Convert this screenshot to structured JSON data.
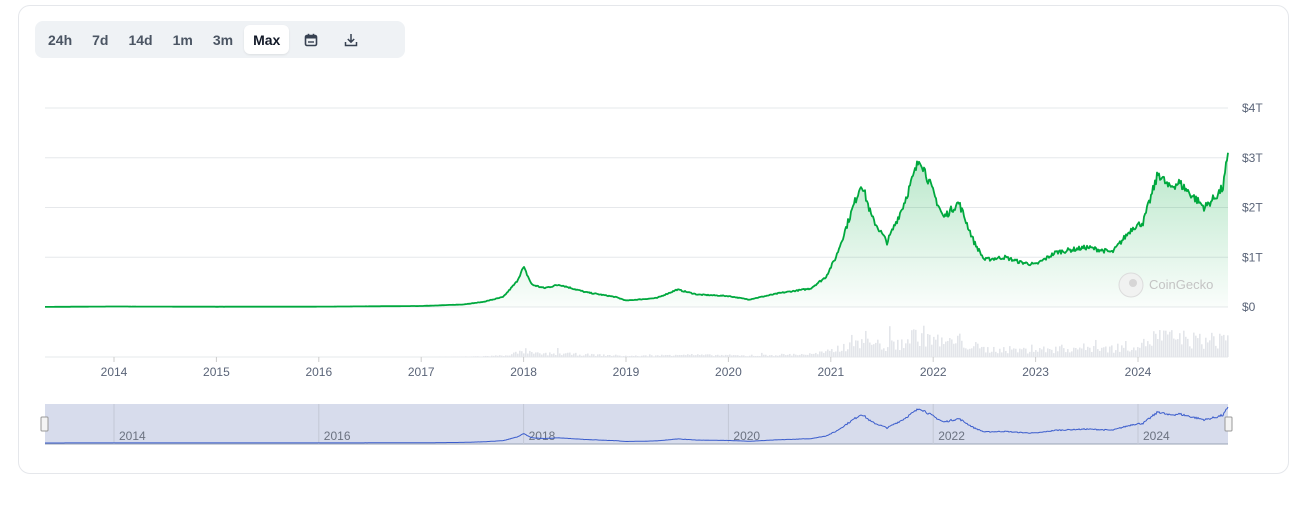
{
  "toolbar": {
    "ranges": [
      "24h",
      "7d",
      "14d",
      "1m",
      "3m",
      "Max"
    ],
    "active_range": "Max",
    "calendar_icon": "calendar-icon",
    "download_icon": "download-icon"
  },
  "watermark": "CoinGecko",
  "colors": {
    "line": "#00a83e",
    "fill": "#00a83e",
    "navigator_line": "#3a5ccc",
    "navigator_bg": "#d7dcec",
    "volume": "#e3e5ea",
    "grid": "#e6e8eb"
  },
  "chart_data": {
    "type": "area",
    "title": "",
    "xlabel": "",
    "ylabel": "",
    "y_unit": "USD trillions",
    "ylim": [
      0,
      4
    ],
    "y_ticks": [
      "$0",
      "$1T",
      "$2T",
      "$3T",
      "$4T"
    ],
    "x_ticks": [
      "2014",
      "2015",
      "2016",
      "2017",
      "2018",
      "2019",
      "2020",
      "2021",
      "2022",
      "2023",
      "2024"
    ],
    "navigator_ticks": [
      "2014",
      "2016",
      "2018",
      "2020",
      "2022",
      "2024"
    ],
    "grid": true,
    "series": [
      {
        "x": [
          2013.33,
          2014.0,
          2015.0,
          2016.0,
          2017.0,
          2017.4,
          2017.6,
          2017.8,
          2017.93,
          2018.0,
          2018.08,
          2018.2,
          2018.35,
          2018.6,
          2018.9,
          2019.0,
          2019.3,
          2019.5,
          2019.7,
          2020.0,
          2020.2,
          2020.5,
          2020.8,
          2020.95,
          2021.05,
          2021.15,
          2021.3,
          2021.4,
          2021.55,
          2021.7,
          2021.87,
          2022.0,
          2022.1,
          2022.25,
          2022.4,
          2022.5,
          2022.7,
          2022.85,
          2023.0,
          2023.2,
          2023.5,
          2023.75,
          2023.95,
          2024.05,
          2024.2,
          2024.3,
          2024.4,
          2024.55,
          2024.65,
          2024.75,
          2024.83,
          2024.88
        ],
        "y": [
          0.002,
          0.01,
          0.005,
          0.007,
          0.02,
          0.05,
          0.1,
          0.2,
          0.5,
          0.8,
          0.45,
          0.38,
          0.45,
          0.3,
          0.2,
          0.13,
          0.18,
          0.35,
          0.25,
          0.22,
          0.15,
          0.28,
          0.37,
          0.6,
          1.0,
          1.6,
          2.5,
          1.8,
          1.3,
          2.0,
          3.0,
          2.3,
          1.8,
          2.1,
          1.3,
          0.95,
          1.0,
          0.9,
          0.85,
          1.1,
          1.2,
          1.1,
          1.6,
          1.7,
          2.7,
          2.4,
          2.5,
          2.2,
          2.0,
          2.2,
          2.4,
          3.1
        ]
      }
    ]
  }
}
